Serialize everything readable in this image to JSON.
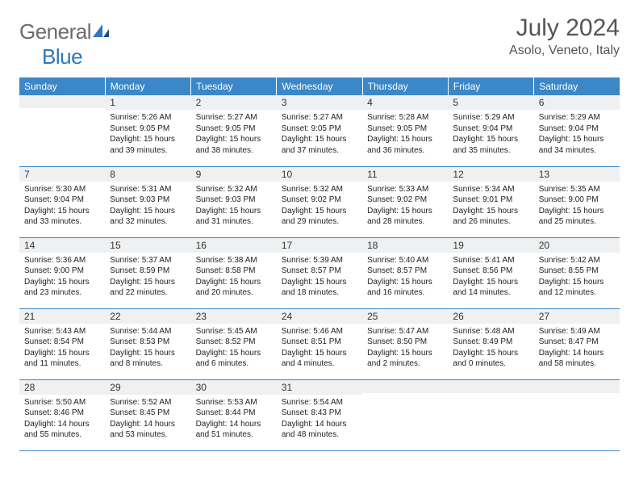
{
  "brand": {
    "text_gray": "General",
    "text_blue": "Blue"
  },
  "title": "July 2024",
  "location": "Asolo, Veneto, Italy",
  "colors": {
    "header_bg": "#3b87c8",
    "header_text": "#ffffff",
    "daynum_bg": "#eef0f2",
    "border": "#3b87c8",
    "title_color": "#555555"
  },
  "weekdays": [
    "Sunday",
    "Monday",
    "Tuesday",
    "Wednesday",
    "Thursday",
    "Friday",
    "Saturday"
  ],
  "weeks": [
    [
      {
        "n": "",
        "sunrise": "",
        "sunset": "",
        "daylight1": "",
        "daylight2": ""
      },
      {
        "n": "1",
        "sunrise": "Sunrise: 5:26 AM",
        "sunset": "Sunset: 9:05 PM",
        "daylight1": "Daylight: 15 hours",
        "daylight2": "and 39 minutes."
      },
      {
        "n": "2",
        "sunrise": "Sunrise: 5:27 AM",
        "sunset": "Sunset: 9:05 PM",
        "daylight1": "Daylight: 15 hours",
        "daylight2": "and 38 minutes."
      },
      {
        "n": "3",
        "sunrise": "Sunrise: 5:27 AM",
        "sunset": "Sunset: 9:05 PM",
        "daylight1": "Daylight: 15 hours",
        "daylight2": "and 37 minutes."
      },
      {
        "n": "4",
        "sunrise": "Sunrise: 5:28 AM",
        "sunset": "Sunset: 9:05 PM",
        "daylight1": "Daylight: 15 hours",
        "daylight2": "and 36 minutes."
      },
      {
        "n": "5",
        "sunrise": "Sunrise: 5:29 AM",
        "sunset": "Sunset: 9:04 PM",
        "daylight1": "Daylight: 15 hours",
        "daylight2": "and 35 minutes."
      },
      {
        "n": "6",
        "sunrise": "Sunrise: 5:29 AM",
        "sunset": "Sunset: 9:04 PM",
        "daylight1": "Daylight: 15 hours",
        "daylight2": "and 34 minutes."
      }
    ],
    [
      {
        "n": "7",
        "sunrise": "Sunrise: 5:30 AM",
        "sunset": "Sunset: 9:04 PM",
        "daylight1": "Daylight: 15 hours",
        "daylight2": "and 33 minutes."
      },
      {
        "n": "8",
        "sunrise": "Sunrise: 5:31 AM",
        "sunset": "Sunset: 9:03 PM",
        "daylight1": "Daylight: 15 hours",
        "daylight2": "and 32 minutes."
      },
      {
        "n": "9",
        "sunrise": "Sunrise: 5:32 AM",
        "sunset": "Sunset: 9:03 PM",
        "daylight1": "Daylight: 15 hours",
        "daylight2": "and 31 minutes."
      },
      {
        "n": "10",
        "sunrise": "Sunrise: 5:32 AM",
        "sunset": "Sunset: 9:02 PM",
        "daylight1": "Daylight: 15 hours",
        "daylight2": "and 29 minutes."
      },
      {
        "n": "11",
        "sunrise": "Sunrise: 5:33 AM",
        "sunset": "Sunset: 9:02 PM",
        "daylight1": "Daylight: 15 hours",
        "daylight2": "and 28 minutes."
      },
      {
        "n": "12",
        "sunrise": "Sunrise: 5:34 AM",
        "sunset": "Sunset: 9:01 PM",
        "daylight1": "Daylight: 15 hours",
        "daylight2": "and 26 minutes."
      },
      {
        "n": "13",
        "sunrise": "Sunrise: 5:35 AM",
        "sunset": "Sunset: 9:00 PM",
        "daylight1": "Daylight: 15 hours",
        "daylight2": "and 25 minutes."
      }
    ],
    [
      {
        "n": "14",
        "sunrise": "Sunrise: 5:36 AM",
        "sunset": "Sunset: 9:00 PM",
        "daylight1": "Daylight: 15 hours",
        "daylight2": "and 23 minutes."
      },
      {
        "n": "15",
        "sunrise": "Sunrise: 5:37 AM",
        "sunset": "Sunset: 8:59 PM",
        "daylight1": "Daylight: 15 hours",
        "daylight2": "and 22 minutes."
      },
      {
        "n": "16",
        "sunrise": "Sunrise: 5:38 AM",
        "sunset": "Sunset: 8:58 PM",
        "daylight1": "Daylight: 15 hours",
        "daylight2": "and 20 minutes."
      },
      {
        "n": "17",
        "sunrise": "Sunrise: 5:39 AM",
        "sunset": "Sunset: 8:57 PM",
        "daylight1": "Daylight: 15 hours",
        "daylight2": "and 18 minutes."
      },
      {
        "n": "18",
        "sunrise": "Sunrise: 5:40 AM",
        "sunset": "Sunset: 8:57 PM",
        "daylight1": "Daylight: 15 hours",
        "daylight2": "and 16 minutes."
      },
      {
        "n": "19",
        "sunrise": "Sunrise: 5:41 AM",
        "sunset": "Sunset: 8:56 PM",
        "daylight1": "Daylight: 15 hours",
        "daylight2": "and 14 minutes."
      },
      {
        "n": "20",
        "sunrise": "Sunrise: 5:42 AM",
        "sunset": "Sunset: 8:55 PM",
        "daylight1": "Daylight: 15 hours",
        "daylight2": "and 12 minutes."
      }
    ],
    [
      {
        "n": "21",
        "sunrise": "Sunrise: 5:43 AM",
        "sunset": "Sunset: 8:54 PM",
        "daylight1": "Daylight: 15 hours",
        "daylight2": "and 11 minutes."
      },
      {
        "n": "22",
        "sunrise": "Sunrise: 5:44 AM",
        "sunset": "Sunset: 8:53 PM",
        "daylight1": "Daylight: 15 hours",
        "daylight2": "and 8 minutes."
      },
      {
        "n": "23",
        "sunrise": "Sunrise: 5:45 AM",
        "sunset": "Sunset: 8:52 PM",
        "daylight1": "Daylight: 15 hours",
        "daylight2": "and 6 minutes."
      },
      {
        "n": "24",
        "sunrise": "Sunrise: 5:46 AM",
        "sunset": "Sunset: 8:51 PM",
        "daylight1": "Daylight: 15 hours",
        "daylight2": "and 4 minutes."
      },
      {
        "n": "25",
        "sunrise": "Sunrise: 5:47 AM",
        "sunset": "Sunset: 8:50 PM",
        "daylight1": "Daylight: 15 hours",
        "daylight2": "and 2 minutes."
      },
      {
        "n": "26",
        "sunrise": "Sunrise: 5:48 AM",
        "sunset": "Sunset: 8:49 PM",
        "daylight1": "Daylight: 15 hours",
        "daylight2": "and 0 minutes."
      },
      {
        "n": "27",
        "sunrise": "Sunrise: 5:49 AM",
        "sunset": "Sunset: 8:47 PM",
        "daylight1": "Daylight: 14 hours",
        "daylight2": "and 58 minutes."
      }
    ],
    [
      {
        "n": "28",
        "sunrise": "Sunrise: 5:50 AM",
        "sunset": "Sunset: 8:46 PM",
        "daylight1": "Daylight: 14 hours",
        "daylight2": "and 55 minutes."
      },
      {
        "n": "29",
        "sunrise": "Sunrise: 5:52 AM",
        "sunset": "Sunset: 8:45 PM",
        "daylight1": "Daylight: 14 hours",
        "daylight2": "and 53 minutes."
      },
      {
        "n": "30",
        "sunrise": "Sunrise: 5:53 AM",
        "sunset": "Sunset: 8:44 PM",
        "daylight1": "Daylight: 14 hours",
        "daylight2": "and 51 minutes."
      },
      {
        "n": "31",
        "sunrise": "Sunrise: 5:54 AM",
        "sunset": "Sunset: 8:43 PM",
        "daylight1": "Daylight: 14 hours",
        "daylight2": "and 48 minutes."
      },
      {
        "n": "",
        "sunrise": "",
        "sunset": "",
        "daylight1": "",
        "daylight2": ""
      },
      {
        "n": "",
        "sunrise": "",
        "sunset": "",
        "daylight1": "",
        "daylight2": ""
      },
      {
        "n": "",
        "sunrise": "",
        "sunset": "",
        "daylight1": "",
        "daylight2": ""
      }
    ]
  ]
}
